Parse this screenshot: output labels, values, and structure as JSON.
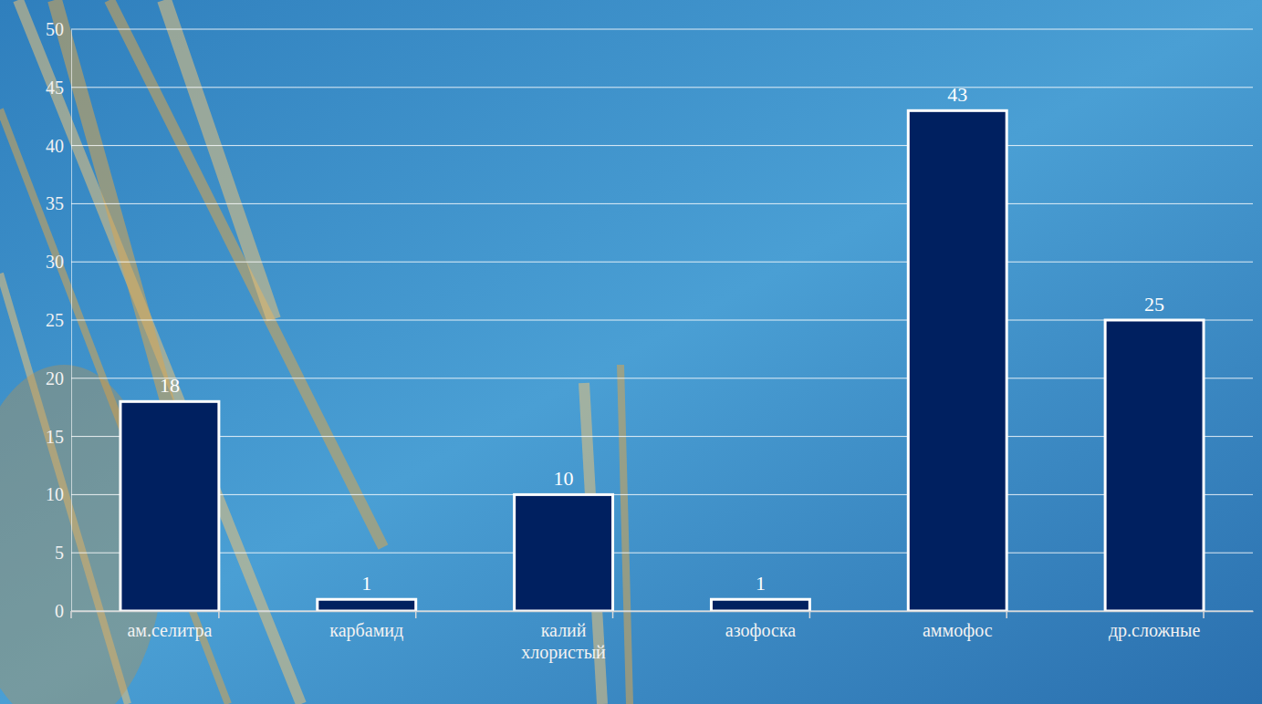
{
  "chart_data": {
    "type": "bar",
    "categories": [
      "ам.селитра",
      "карбамид",
      "калий хлористый",
      "азофоска",
      "аммофос",
      "др.сложные"
    ],
    "values": [
      18,
      1,
      10,
      1,
      43,
      25
    ],
    "color": "#002060",
    "ylim": [
      0,
      50
    ],
    "yticks": [
      0,
      5,
      10,
      15,
      20,
      25,
      30,
      35,
      40,
      45,
      50
    ],
    "grid": true,
    "data_labels": true
  }
}
